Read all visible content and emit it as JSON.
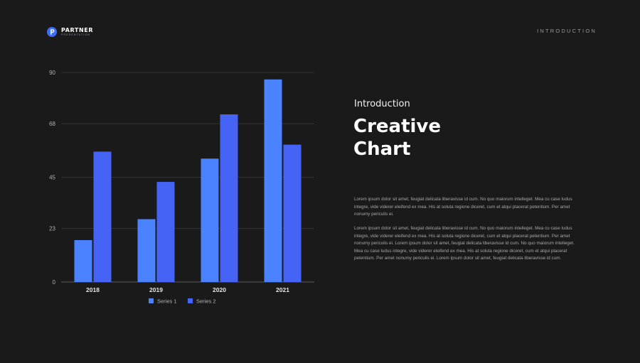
{
  "brand": {
    "name": "PARTNER",
    "tagline": "PRESENTATION",
    "accent": "#3e6ef5"
  },
  "header": {
    "section_label": "INTRODUCTION"
  },
  "content": {
    "subtitle": "Introduction",
    "title_line1": "Creative",
    "title_line2": "Chart",
    "paragraph1": "Lorem ipsum dolor sit amet, feugiat delicata liberavisse id cum. No quo maiorum intelleget. Mea cu case ludus integre, vide viderer eleifend ex mea. His at soluta regione diceret, cum et atqui placerat petentium. Per amet nonumy periculis ei.",
    "paragraph2": "Lorem ipsum dolor sit amet, feugiat delicata liberavisse id cum. No quo maiorum intelleget. Mea cu case ludus integre, vide viderer eleifend ex mea. His at soluta regione diceret, cum et atqui placerat petentium. Per amet nonumy periculis ei. Lorem ipsum dolor sit amet, feugiat delicata liberavisse id cum. No quo maiorum intelleget. Mea cu case ludus integre, vide viderer eleifend ex mea. His at soluta regione diceret, cum et atqui placerat petentium. Per amet nonumy periculis ei. Lorem ipsum dolor sit amet, feugiat delicata liberavisse id cum."
  },
  "chart_data": {
    "type": "bar",
    "categories": [
      "2018",
      "2019",
      "2020",
      "2021"
    ],
    "series": [
      {
        "name": "Series 1",
        "values": [
          18,
          27,
          53,
          87
        ],
        "color": "#4b82ff"
      },
      {
        "name": "Series 2",
        "values": [
          56,
          43,
          72,
          59
        ],
        "color": "#4564f5"
      }
    ],
    "y_ticks": [
      0,
      23,
      45,
      68,
      90
    ],
    "ylim": [
      0,
      90
    ],
    "grid": true,
    "legend_position": "bottom",
    "title": "",
    "xlabel": "",
    "ylabel": ""
  }
}
